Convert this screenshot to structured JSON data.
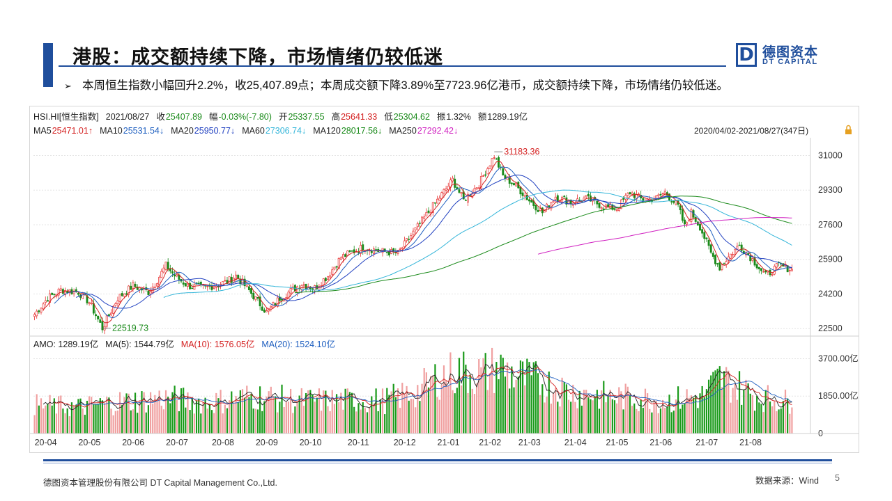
{
  "slide": {
    "title": "港股：成交额持续下降，市场情绪仍较低迷",
    "bullet": "本周恒生指数小幅回升2.2%，收25,407.89点；本周成交额下降3.89%至7723.96亿港币，成交额持续下降，市场情绪仍较低迷。",
    "logo_cn": "德图资本",
    "logo_en": "DT CAPITAL",
    "logo_letter": "D",
    "footer_company": "德图资本管理股份有限公司  DT Capital  Management  Co.,Ltd.",
    "footer_source": "数据来源：Wind",
    "page_number": "5"
  },
  "chart_data": {
    "type": "candlestick",
    "header": [
      {
        "text": "HSI.HI[恒生指数]",
        "color": "#222222"
      },
      {
        "text": "2021/08/27",
        "color": "#222222"
      },
      {
        "text": "收",
        "color": "#222222"
      },
      {
        "text": "25407.89",
        "color": "#1a8a1a"
      },
      {
        "text": "幅",
        "color": "#222222"
      },
      {
        "text": "-0.03%(-7.80)",
        "color": "#1a8a1a"
      },
      {
        "text": "开",
        "color": "#222222"
      },
      {
        "text": "25337.55",
        "color": "#1a8a1a"
      },
      {
        "text": "高",
        "color": "#222222"
      },
      {
        "text": "25641.33",
        "color": "#d42020"
      },
      {
        "text": "低",
        "color": "#222222"
      },
      {
        "text": "25304.62",
        "color": "#1a8a1a"
      },
      {
        "text": "振",
        "color": "#222222"
      },
      {
        "text": "1.32%",
        "color": "#222222"
      },
      {
        "text": "额",
        "color": "#222222"
      },
      {
        "text": "1289.19亿",
        "color": "#222222"
      }
    ],
    "ma_legend": [
      {
        "text": "MA5",
        "color": "#222222"
      },
      {
        "text": "25471.01↑",
        "color": "#d42020"
      },
      {
        "text": "MA10",
        "color": "#222222"
      },
      {
        "text": "25531.54↓",
        "color": "#2060c0"
      },
      {
        "text": "MA20",
        "color": "#222222"
      },
      {
        "text": "25950.77↓",
        "color": "#2040c0"
      },
      {
        "text": "MA60",
        "color": "#222222"
      },
      {
        "text": "27306.74↓",
        "color": "#33b5d9"
      },
      {
        "text": "MA120",
        "color": "#222222"
      },
      {
        "text": "28017.56↓",
        "color": "#1a8a1a"
      },
      {
        "text": "MA250",
        "color": "#222222"
      },
      {
        "text": "27292.42↓",
        "color": "#d020c0"
      }
    ],
    "date_range": "2020/04/02-2021/08/27(347日)",
    "y_axis": {
      "ticks": [
        31000,
        29300,
        27600,
        25900,
        24200,
        22500
      ],
      "range": [
        22200,
        31700
      ]
    },
    "annotations": [
      {
        "text": "31183.36",
        "date_index": 210,
        "value": 31183.36,
        "color": "#d42020"
      },
      {
        "text": "22519.73",
        "date_index": 31,
        "value": 22519.73,
        "color": "#1a8a1a"
      }
    ],
    "index_anchors": [
      [
        0,
        23200
      ],
      [
        6,
        24000
      ],
      [
        12,
        24400
      ],
      [
        20,
        24300
      ],
      [
        25,
        23800
      ],
      [
        31,
        22520
      ],
      [
        38,
        24000
      ],
      [
        45,
        24600
      ],
      [
        52,
        24300
      ],
      [
        55,
        24700
      ],
      [
        60,
        25600
      ],
      [
        64,
        25100
      ],
      [
        70,
        24600
      ],
      [
        78,
        24500
      ],
      [
        88,
        24800
      ],
      [
        92,
        25100
      ],
      [
        97,
        24500
      ],
      [
        106,
        23300
      ],
      [
        112,
        24000
      ],
      [
        122,
        24700
      ],
      [
        128,
        24500
      ],
      [
        134,
        25100
      ],
      [
        140,
        26000
      ],
      [
        150,
        26500
      ],
      [
        158,
        26300
      ],
      [
        166,
        26200
      ],
      [
        175,
        27500
      ],
      [
        184,
        28800
      ],
      [
        191,
        29800
      ],
      [
        196,
        28800
      ],
      [
        203,
        29600
      ],
      [
        210,
        31000
      ],
      [
        214,
        30000
      ],
      [
        220,
        29500
      ],
      [
        226,
        28800
      ],
      [
        232,
        28200
      ],
      [
        238,
        29000
      ],
      [
        245,
        28700
      ],
      [
        252,
        28900
      ],
      [
        260,
        28500
      ],
      [
        266,
        28400
      ],
      [
        272,
        29200
      ],
      [
        278,
        28800
      ],
      [
        284,
        28900
      ],
      [
        288,
        29200
      ],
      [
        294,
        28500
      ],
      [
        297,
        27500
      ],
      [
        300,
        28200
      ],
      [
        304,
        27500
      ],
      [
        309,
        26200
      ],
      [
        313,
        25500
      ],
      [
        316,
        25900
      ],
      [
        322,
        26600
      ],
      [
        328,
        25900
      ],
      [
        334,
        25100
      ],
      [
        340,
        25600
      ],
      [
        346,
        25400
      ]
    ],
    "ma_series": [
      {
        "name": "MA5",
        "window": 5,
        "color": "#d42020"
      },
      {
        "name": "MA10",
        "window": 10,
        "color": "#2060c0"
      },
      {
        "name": "MA20",
        "window": 20,
        "color": "#2040c0"
      },
      {
        "name": "MA60",
        "window": 60,
        "color": "#33b5d9"
      },
      {
        "name": "MA120",
        "window": 120,
        "color": "#1a8a1a"
      },
      {
        "name": "MA250",
        "window": 250,
        "color": "#d020c0"
      }
    ],
    "volume": {
      "legend": [
        {
          "text": "AMO: 1289.19亿",
          "color": "#222222"
        },
        {
          "text": "MA(5): 1544.79亿",
          "color": "#222222"
        },
        {
          "text": "MA(10): 1576.05亿",
          "color": "#d42020"
        },
        {
          "text": "MA(20): 1524.10亿",
          "color": "#2060c0"
        }
      ],
      "y_ticks": [
        "3700.00亿",
        "1850.00亿",
        "0"
      ],
      "y_values": [
        3700,
        1850,
        0
      ],
      "anchors": [
        [
          0,
          1300
        ],
        [
          20,
          1200
        ],
        [
          40,
          1450
        ],
        [
          60,
          1600
        ],
        [
          80,
          1400
        ],
        [
          100,
          1700
        ],
        [
          120,
          1500
        ],
        [
          140,
          1500
        ],
        [
          160,
          1500
        ],
        [
          175,
          1900
        ],
        [
          185,
          2600
        ],
        [
          195,
          2800
        ],
        [
          205,
          2700
        ],
        [
          212,
          3000
        ],
        [
          220,
          2600
        ],
        [
          232,
          2300
        ],
        [
          245,
          1900
        ],
        [
          260,
          1700
        ],
        [
          275,
          1600
        ],
        [
          290,
          1500
        ],
        [
          305,
          1700
        ],
        [
          313,
          2500
        ],
        [
          318,
          2300
        ],
        [
          330,
          1700
        ],
        [
          346,
          1400
        ]
      ]
    },
    "x_axis": {
      "labels": [
        "20-04",
        "20-05",
        "20-06",
        "20-07",
        "20-08",
        "20-09",
        "20-10",
        "20-11",
        "20-12",
        "21-01",
        "21-02",
        "21-03",
        "21-04",
        "21-05",
        "21-06",
        "21-07",
        "21-08"
      ],
      "label_indices": [
        0,
        20,
        40,
        60,
        81,
        101,
        121,
        143,
        164,
        184,
        203,
        221,
        242,
        261,
        281,
        302,
        322
      ]
    },
    "colors": {
      "up": "#e83030",
      "down": "#1a8a1a",
      "vol_up": "#f0a0a0",
      "vol_down": "#1a9a1a"
    }
  }
}
